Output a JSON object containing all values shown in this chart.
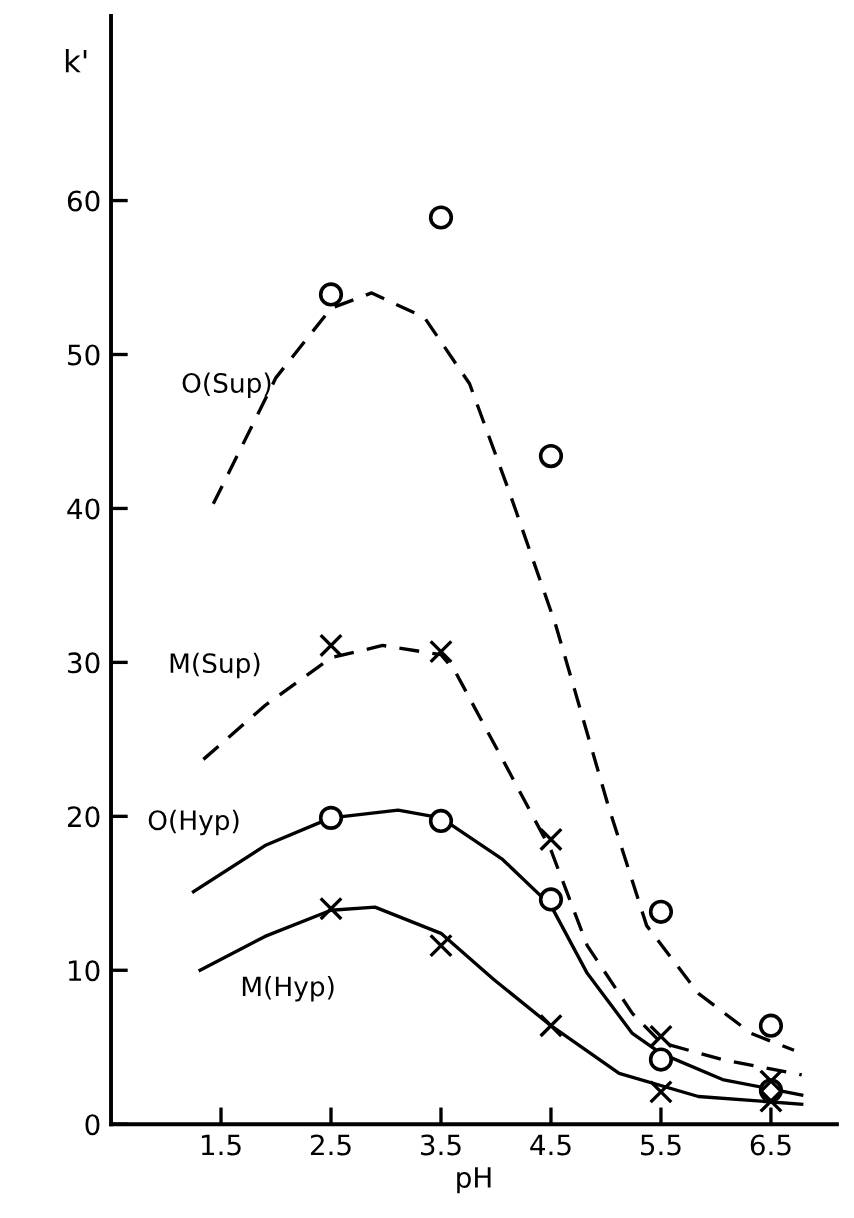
{
  "chart_data": {
    "type": "line",
    "xlabel": "pH",
    "ylabel": "k'",
    "xlim": [
      0.5,
      7.1
    ],
    "ylim": [
      0,
      72
    ],
    "xticks": [
      1.5,
      2.5,
      3.5,
      4.5,
      5.5,
      6.5
    ],
    "yticks": [
      0,
      10,
      20,
      30,
      40,
      50,
      60
    ],
    "grid": false,
    "legend": false,
    "series": [
      {
        "name": "O(Sup)",
        "color": "#000000",
        "line_style": "dashed",
        "marker": "none",
        "x": [
          1.43,
          2.0,
          2.5,
          2.87,
          3.35,
          3.76,
          4.12,
          4.54,
          4.72,
          5.02,
          5.37,
          5.84,
          6.32,
          6.71
        ],
        "values": [
          40.3,
          48.5,
          53.0,
          54.0,
          52.4,
          48.1,
          41.1,
          32.5,
          28.1,
          20.7,
          12.9,
          8.5,
          5.9,
          4.8
        ]
      },
      {
        "name": "M(Sup)",
        "color": "#000000",
        "line_style": "dashed",
        "marker": "none",
        "x": [
          1.34,
          1.9,
          2.5,
          2.97,
          3.5,
          3.63,
          4.12,
          4.5,
          4.83,
          5.24,
          5.5,
          6.06,
          6.78
        ],
        "values": [
          23.7,
          27.2,
          30.3,
          31.1,
          30.5,
          29.4,
          22.9,
          17.8,
          11.6,
          7.2,
          5.3,
          4.2,
          3.2
        ]
      },
      {
        "name": "O(Hyp)",
        "color": "#000000",
        "line_style": "solid",
        "marker": "none",
        "x": [
          1.25,
          1.9,
          2.5,
          3.11,
          3.5,
          4.06,
          4.5,
          4.83,
          5.24,
          5.5,
          6.06,
          6.78
        ],
        "values": [
          15.1,
          18.1,
          19.9,
          20.4,
          19.9,
          17.2,
          14.2,
          9.8,
          5.9,
          4.6,
          2.9,
          1.9
        ]
      },
      {
        "name": "M(Hyp)",
        "color": "#000000",
        "line_style": "solid",
        "marker": "none",
        "x": [
          1.31,
          1.9,
          2.5,
          2.9,
          3.5,
          3.98,
          4.5,
          5.12,
          5.84,
          6.78
        ],
        "values": [
          10.0,
          12.2,
          13.9,
          14.1,
          12.4,
          9.4,
          6.4,
          3.3,
          1.8,
          1.3
        ]
      },
      {
        "type": "scatter",
        "color": "#000000",
        "marker": "circle",
        "x": [
          2.5,
          3.5,
          4.5,
          5.5,
          6.5
        ],
        "values": [
          53.9,
          58.9,
          43.4,
          13.8,
          6.4
        ]
      },
      {
        "type": "scatter",
        "color": "#000000",
        "marker": "cross",
        "x": [
          2.5,
          3.5,
          4.5,
          5.5,
          6.5
        ],
        "values": [
          31.1,
          30.7,
          18.5,
          5.7,
          2.8
        ]
      },
      {
        "type": "scatter",
        "color": "#000000",
        "marker": "circle",
        "x": [
          2.5,
          3.5,
          4.5,
          5.5,
          6.5
        ],
        "values": [
          19.9,
          19.7,
          14.6,
          4.2,
          2.2
        ]
      },
      {
        "type": "scatter",
        "color": "#000000",
        "marker": "cross",
        "x": [
          2.5,
          3.5,
          4.5,
          5.5,
          6.5
        ],
        "values": [
          14.0,
          11.6,
          6.4,
          2.1,
          1.5
        ]
      }
    ]
  }
}
